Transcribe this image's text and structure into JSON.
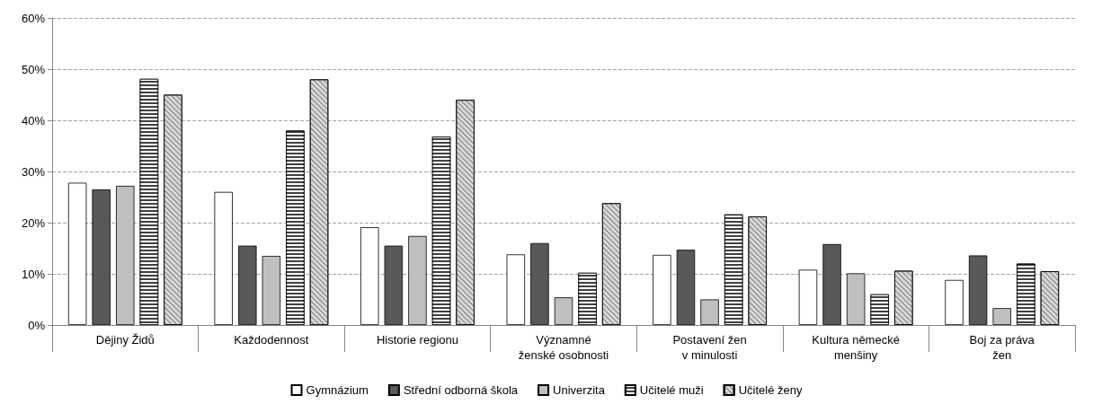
{
  "chart_data": {
    "type": "bar",
    "categories": [
      "Dějiny Židů",
      "Každodennost",
      "Historie regionu",
      "Významné\nženské osobnosti",
      "Postavení žen\nv minulosti",
      "Kultura německé\nmenšiny",
      "Boj za práva\nžen"
    ],
    "series": [
      {
        "name": "Gymnázium",
        "color": "#ffffff",
        "values": [
          27.8,
          26,
          19.1,
          13.8,
          13.7,
          10.8,
          8.8
        ]
      },
      {
        "name": "Střední odborná škola",
        "color": "#595959",
        "values": [
          26.5,
          15.5,
          15.5,
          16,
          14.7,
          15.8,
          13.6
        ]
      },
      {
        "name": "Univerzita",
        "color": "#bfbfbf",
        "values": [
          27.2,
          13.5,
          17.4,
          5.4,
          5,
          10.1,
          3.3
        ]
      },
      {
        "name": "Učitelé muži",
        "color": "#404040",
        "values": [
          48.1,
          38,
          36.8,
          10.2,
          21.6,
          6,
          12
        ]
      },
      {
        "name": "Učitelé ženy",
        "color": "#d9d9d9",
        "values": [
          45,
          48,
          44,
          23.8,
          21.2,
          10.6,
          10.5
        ]
      }
    ],
    "ylim": [
      0,
      60
    ],
    "yticks": [
      {
        "value": 0,
        "label": "0%"
      },
      {
        "value": 10,
        "label": "10%"
      },
      {
        "value": 20,
        "label": "20%"
      },
      {
        "value": 30,
        "label": "30%"
      },
      {
        "value": 40,
        "label": "40%"
      },
      {
        "value": 50,
        "label": "50%"
      },
      {
        "value": 60,
        "label": "60%"
      }
    ],
    "grid": "y",
    "legend": "bottom"
  }
}
